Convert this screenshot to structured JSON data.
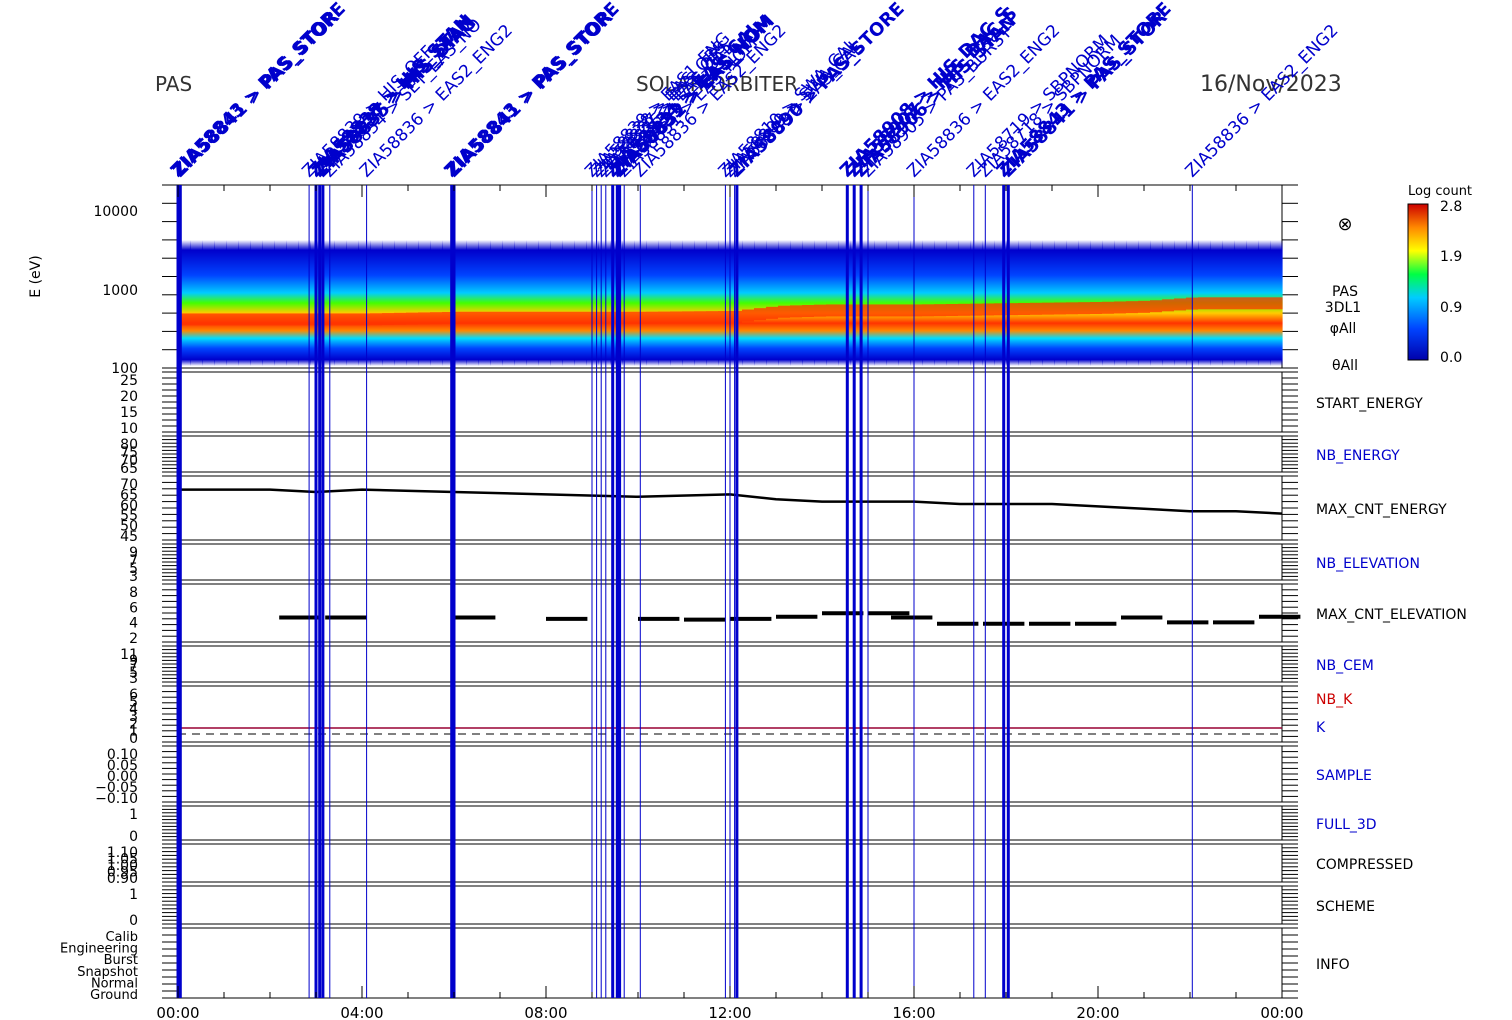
{
  "header": {
    "left": "PAS",
    "center": "SOLAR ORBITER",
    "right": "16/Nov/2023"
  },
  "colors": {
    "event_line": "#0000cc",
    "panel_label_blue": "#0000cc",
    "panel_label_red": "#cc0000",
    "trace": "#000000",
    "k_line": "#990033"
  },
  "colorbar": {
    "title": "Log count",
    "ticks": [
      "2.8",
      "1.9",
      "0.9",
      "0.0"
    ],
    "range": [
      0.0,
      2.8
    ]
  },
  "spectrogram_info": {
    "symbol": "⊗",
    "lines": [
      "PAS",
      "3DL1",
      "φAll",
      "θAll"
    ]
  },
  "x_axis": {
    "tick_labels": [
      "00:00",
      "04:00",
      "08:00",
      "12:00",
      "16:00",
      "20:00",
      "00:00"
    ],
    "range_hours": [
      0,
      24
    ]
  },
  "events": [
    {
      "t": 0.0,
      "label": "ZIA58843 > PAS_STORE",
      "bold": true
    },
    {
      "t": 0.05,
      "label": "ZIA58841 > PAS_STOR",
      "bold": true
    },
    {
      "t": 2.85,
      "label": "ZIA58839 > HIS_OFF",
      "bold": false
    },
    {
      "t": 3.0,
      "label": "ZIA58838 > HIS_STAN",
      "bold": true
    },
    {
      "t": 3.08,
      "label": "ZIA58837 > HIS_STAN",
      "bold": true
    },
    {
      "t": 3.15,
      "label": "ZIA58835 > HIS_DIAG",
      "bold": true
    },
    {
      "t": 3.3,
      "label": "ZIA58834 > SET_EAS_NO",
      "bold": false
    },
    {
      "t": 4.1,
      "label": "ZIA58836 > EAS2_ENG2",
      "bold": false
    },
    {
      "t": 5.95,
      "label": "ZIA58843 > PAS_STORE",
      "bold": true
    },
    {
      "t": 6.0,
      "label": "ZIA58841 > PAS_STOR",
      "bold": true
    },
    {
      "t": 9.0,
      "label": "ZIA58839 > EAS1_ENG",
      "bold": false
    },
    {
      "t": 9.1,
      "label": "ZIA58838 > EAS_OBS",
      "bold": false
    },
    {
      "t": 9.2,
      "label": "ZIA58837 > EAS_OBS",
      "bold": false
    },
    {
      "t": 9.3,
      "label": "ZIA58835 > EAS_CAL",
      "bold": false
    },
    {
      "t": 9.45,
      "label": "ZIA58834 > EAS_CAL",
      "bold": true
    },
    {
      "t": 9.55,
      "label": "ZIA58833 > EAS_NOM",
      "bold": true
    },
    {
      "t": 9.6,
      "label": "ZIA58832 > EAS_NOM",
      "bold": true
    },
    {
      "t": 9.7,
      "label": "ZIA58831 > EAS_NOM",
      "bold": false
    },
    {
      "t": 10.05,
      "label": "ZIA58836 > EAS2_ENG2",
      "bold": false
    },
    {
      "t": 11.9,
      "label": "ZIA58810 > SWA_CAL",
      "bold": false
    },
    {
      "t": 12.0,
      "label": "ZIA58809 > SWA_CAL",
      "bold": false
    },
    {
      "t": 12.1,
      "label": "ZIA58808 > EAS_CAL",
      "bold": false
    },
    {
      "t": 12.15,
      "label": "ZIA58890 > PAS_STORE",
      "bold": true
    },
    {
      "t": 14.55,
      "label": "ZIA58908 > HIS_DAC_S",
      "bold": true
    },
    {
      "t": 14.7,
      "label": "ZIA58907 > HIS_DAC_S",
      "bold": true
    },
    {
      "t": 14.85,
      "label": "ZIA58906 > HIS_STAN",
      "bold": true
    },
    {
      "t": 15.0,
      "label": "ZIA58905 > PAS_BURST",
      "bold": false
    },
    {
      "t": 16.0,
      "label": "ZIA58836 > EAS2_ENG2",
      "bold": false
    },
    {
      "t": 17.3,
      "label": "ZIA58719 > SBPNORM",
      "bold": false
    },
    {
      "t": 17.55,
      "label": "ZIA58718 > SBPNORM",
      "bold": false
    },
    {
      "t": 17.95,
      "label": "ZIA58843 > PAS_STORE",
      "bold": true
    },
    {
      "t": 18.05,
      "label": "ZIA58841 > PAS_STOR",
      "bold": true
    },
    {
      "t": 22.05,
      "label": "ZIA58836 > EAS2_ENG2",
      "bold": false
    }
  ],
  "panels": [
    {
      "name": "energy-spectrogram",
      "label": "",
      "label_color": "",
      "yticks": [
        "10000",
        "1000",
        "100"
      ],
      "ylabel": "E (eV)"
    },
    {
      "name": "start-energy",
      "label": "START_ENERGY",
      "label_color": "#000000",
      "yticks": [
        "25",
        "20",
        "15",
        "10"
      ]
    },
    {
      "name": "nb-energy",
      "label": "NB_ENERGY",
      "label_color": "#0000cc",
      "yticks": [
        "80",
        "75",
        "70",
        "65"
      ]
    },
    {
      "name": "max-cnt-energy",
      "label": "MAX_CNT_ENERGY",
      "label_color": "#000000",
      "yticks": [
        "70",
        "65",
        "60",
        "55",
        "50",
        "45"
      ]
    },
    {
      "name": "nb-elevation",
      "label": "NB_ELEVATION",
      "label_color": "#0000cc",
      "yticks": [
        "9",
        "7",
        "5",
        "3"
      ]
    },
    {
      "name": "max-cnt-elevation",
      "label": "MAX_CNT_ELEVATION",
      "label_color": "#000000",
      "yticks": [
        "8",
        "6",
        "4",
        "2"
      ]
    },
    {
      "name": "nb-cem",
      "label": "NB_CEM",
      "label_color": "#0000cc",
      "yticks": [
        "11",
        "9",
        "7",
        "5",
        "3"
      ]
    },
    {
      "name": "k",
      "label": "NB_K",
      "label2": "K",
      "label_color": "#cc0000",
      "label2_color": "#0000cc",
      "yticks": [
        "6",
        "5",
        "4",
        "3",
        "2",
        "1",
        "0"
      ]
    },
    {
      "name": "sample",
      "label": "SAMPLE",
      "label_color": "#0000cc",
      "yticks": [
        "0.10",
        "0.05",
        "0.00",
        "−0.05",
        "−0.10"
      ]
    },
    {
      "name": "full-3d",
      "label": "FULL_3D",
      "label_color": "#0000cc",
      "yticks": [
        "1",
        "0"
      ]
    },
    {
      "name": "compressed",
      "label": "COMPRESSED",
      "label_color": "#000000",
      "yticks": [
        "1.10",
        "1.05",
        "1.00",
        "0.95",
        "0.90"
      ]
    },
    {
      "name": "scheme",
      "label": "SCHEME",
      "label_color": "#000000",
      "yticks": [
        "1",
        "0"
      ]
    },
    {
      "name": "info",
      "label": "INFO",
      "label_color": "#000000",
      "yticks": [
        "Calib",
        "Engineering",
        "Burst",
        "Snapshot",
        "Normal",
        "Ground"
      ]
    }
  ],
  "chart_data": {
    "type": "line",
    "title": "",
    "xlabel": "",
    "xlim_hours": [
      0,
      24
    ],
    "energy_spectrogram": {
      "ylabel": "E (eV)",
      "ylim": [
        100,
        20000
      ],
      "log_scale": true,
      "peak_energy_eV": [
        [
          0,
          400
        ],
        [
          2,
          400
        ],
        [
          4,
          400
        ],
        [
          6,
          420
        ],
        [
          8,
          420
        ],
        [
          10,
          420
        ],
        [
          12,
          430
        ],
        [
          13,
          500
        ],
        [
          14,
          520
        ],
        [
          16,
          520
        ],
        [
          18,
          540
        ],
        [
          20,
          560
        ],
        [
          21,
          580
        ],
        [
          22,
          640
        ],
        [
          24,
          640
        ]
      ]
    },
    "max_cnt_energy": {
      "ylim": [
        45,
        70
      ],
      "x_hours": [
        0,
        2,
        3,
        4,
        6,
        8,
        10,
        12,
        13,
        14,
        15,
        16,
        17,
        18,
        19,
        20,
        21,
        22,
        23,
        24
      ],
      "values": [
        66,
        66,
        65,
        66,
        65,
        64,
        63,
        64,
        62,
        61,
        61,
        61,
        60,
        60,
        60,
        59,
        58,
        57,
        57,
        56
      ]
    },
    "max_cnt_elevation": {
      "ylim": [
        1,
        9
      ],
      "x_hours": [
        2.2,
        3.2,
        6.0,
        8.0,
        10.0,
        11.0,
        12.0,
        13.0,
        14.0,
        15.0,
        15.5,
        16.5,
        17.5,
        18.5,
        19.5,
        20.5,
        21.5,
        22.5,
        23.5
      ],
      "values": [
        4.5,
        4.5,
        4.5,
        4.3,
        4.3,
        4.2,
        4.3,
        4.6,
        5.1,
        5.1,
        4.5,
        3.6,
        3.6,
        3.6,
        3.6,
        4.5,
        3.8,
        3.8,
        4.6
      ]
    },
    "k": {
      "ylim": [
        0,
        6
      ],
      "values_constant": 1
    }
  }
}
